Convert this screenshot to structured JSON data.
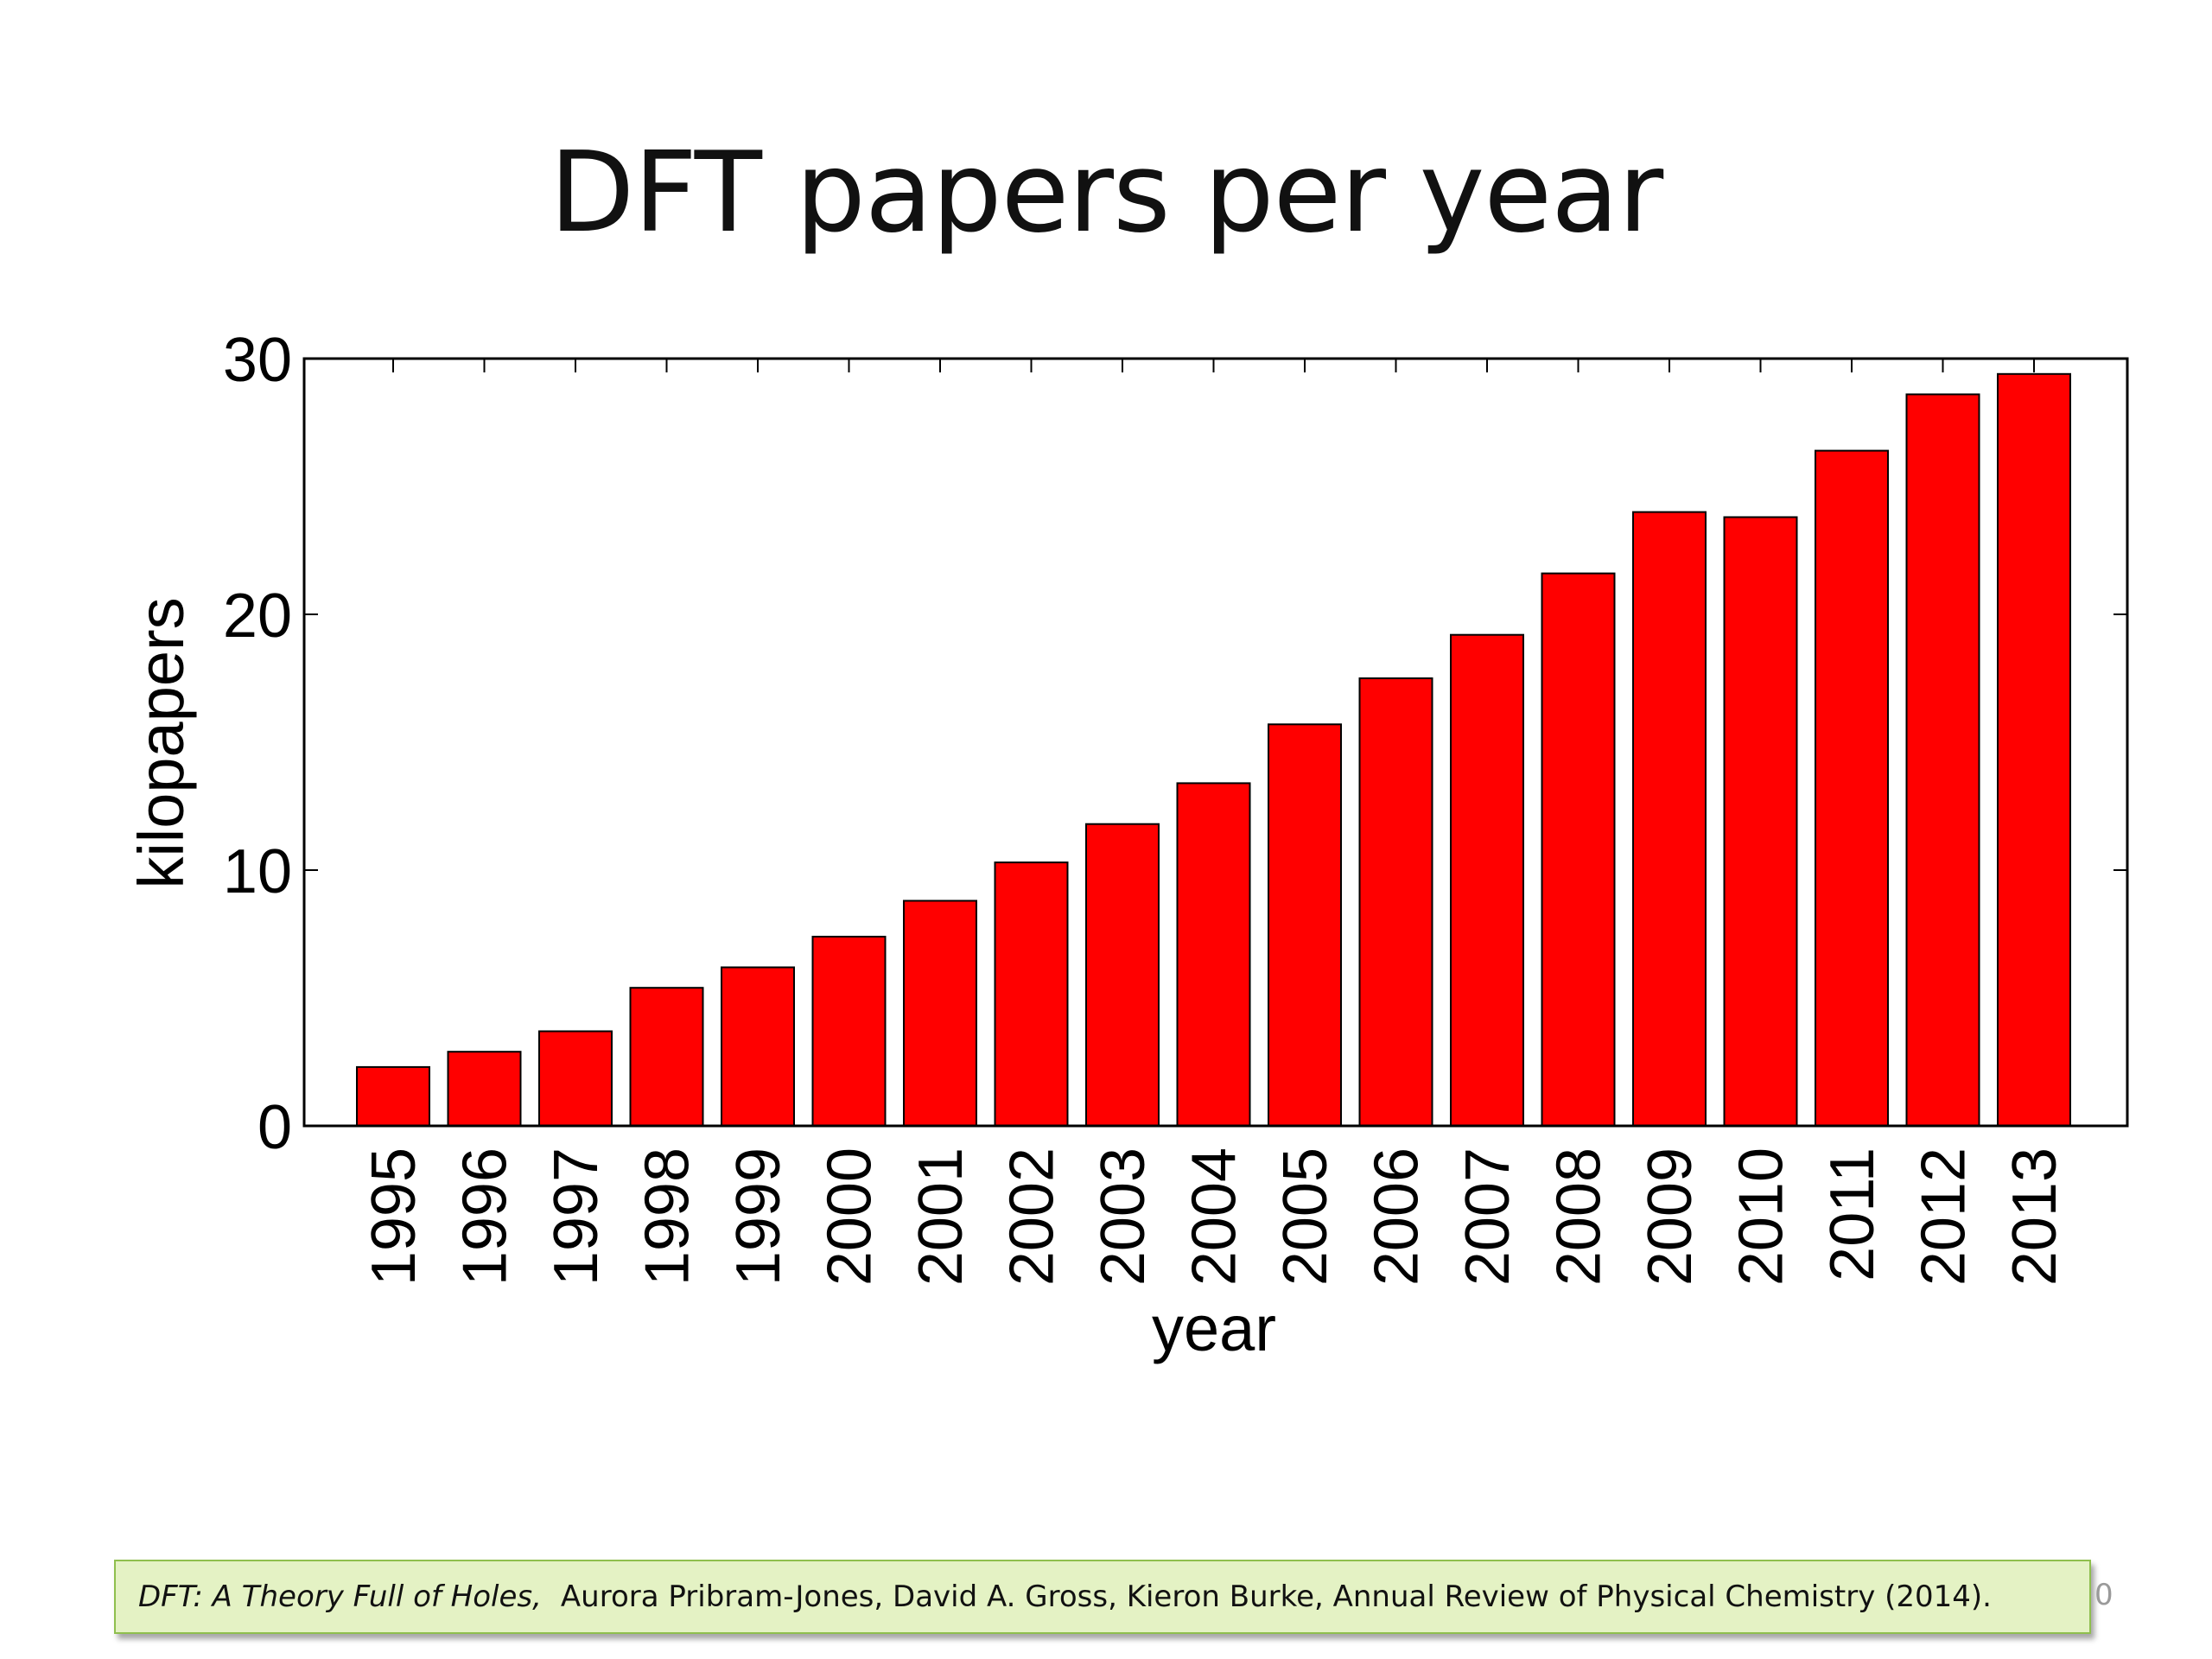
{
  "slide": {
    "title": "DFT papers per year",
    "citation": {
      "work_title": "DFT: A Theory Full of Holes,",
      "details": "Aurora Pribram-Jones, David A. Gross, Kieron Burke, Annual Review of Physical Chemistry (2014)."
    },
    "page_number": "0"
  },
  "chart_data": {
    "type": "bar",
    "title": "DFT papers per year",
    "xlabel": "year",
    "ylabel": "kilopapers",
    "categories": [
      "1995",
      "1996",
      "1997",
      "1998",
      "1999",
      "2000",
      "2001",
      "2002",
      "2003",
      "2004",
      "2005",
      "2006",
      "2007",
      "2008",
      "2009",
      "2010",
      "2011",
      "2012",
      "2013"
    ],
    "values": [
      2.3,
      2.9,
      3.7,
      5.4,
      6.2,
      7.4,
      8.8,
      10.3,
      11.8,
      13.4,
      15.7,
      17.5,
      19.2,
      21.6,
      24.0,
      23.8,
      26.4,
      28.6,
      29.4
    ],
    "yticks": [
      0,
      10,
      20,
      30
    ],
    "ylim": [
      0,
      30
    ],
    "bar_color": "#ff0000",
    "grid": false,
    "legend": "none"
  }
}
